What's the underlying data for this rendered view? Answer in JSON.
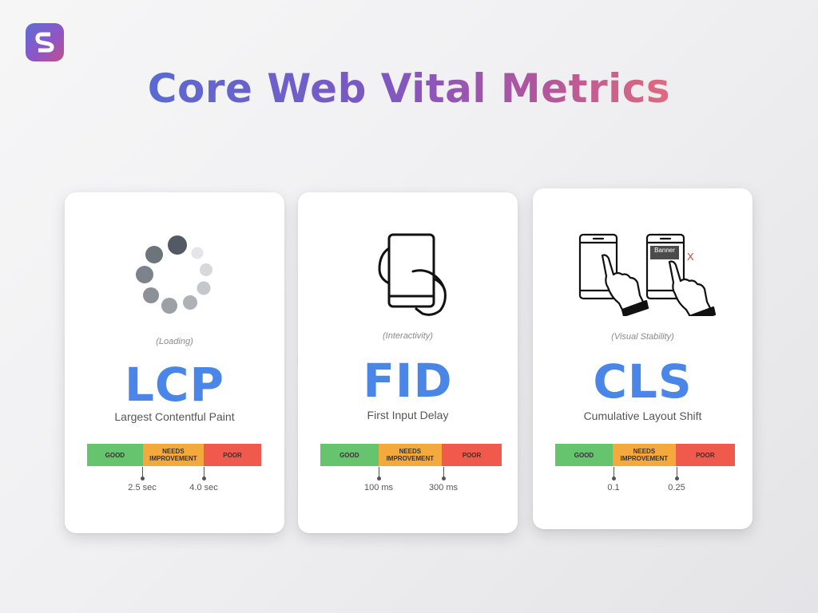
{
  "logo": {
    "letter": "S",
    "icon": "brand-s-logo-icon"
  },
  "title": "Core Web Vital Metrics",
  "colors": {
    "metric_blue": "#4a86e8",
    "good": "#66c46f",
    "needs_improvement": "#f4a93c",
    "poor": "#ef5a4d"
  },
  "cards": [
    {
      "icon": "loading-spinner-icon",
      "category": "(Loading)",
      "abbr": "LCP",
      "full_name": "Largest Contentful Paint",
      "scale": {
        "good": "GOOD",
        "needs": "NEEDS IMPROVEMENT",
        "poor": "POOR"
      },
      "thresholds": [
        "2.5 sec",
        "4.0 sec"
      ]
    },
    {
      "icon": "hand-holding-phone-icon",
      "category": "(Interactivity)",
      "abbr": "FID",
      "full_name": "First Input Delay",
      "scale": {
        "good": "GOOD",
        "needs": "NEEDS IMPROVEMENT",
        "poor": "POOR"
      },
      "thresholds": [
        "100 ms",
        "300 ms"
      ]
    },
    {
      "icon": "layout-shift-phones-icon",
      "category": "(Visual Stability)",
      "abbr": "CLS",
      "full_name": "Cumulative Layout Shift",
      "banner_text": "Banner",
      "close_mark": "X",
      "scale": {
        "good": "GOOD",
        "needs": "NEEDS IMPROVEMENT",
        "poor": "POOR"
      },
      "thresholds": [
        "0.1",
        "0.25"
      ]
    }
  ]
}
